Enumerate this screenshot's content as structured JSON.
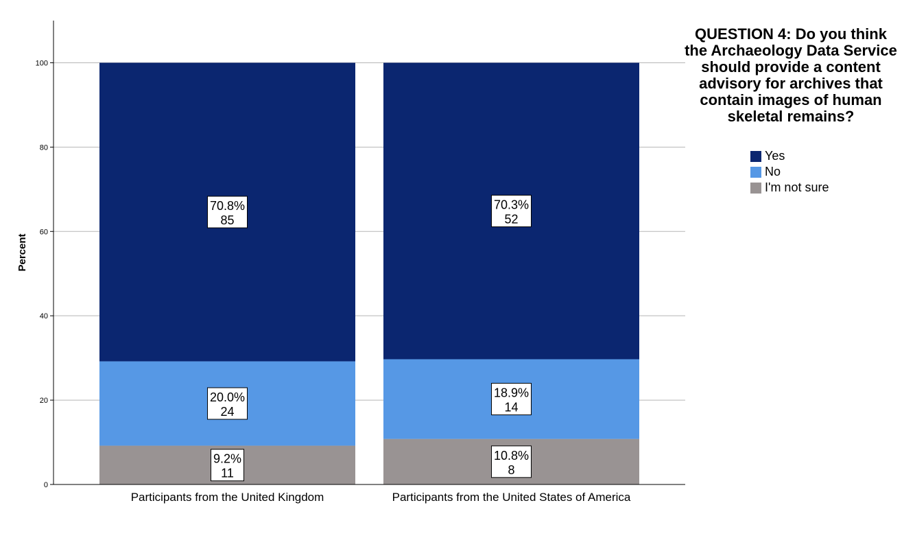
{
  "chart_data": {
    "type": "bar",
    "stacked": true,
    "ylabel": "Percent",
    "xlabel": "",
    "ylim": [
      0,
      110
    ],
    "yticks": [
      0,
      20,
      40,
      60,
      80,
      100
    ],
    "grid": true,
    "legend_placement": "right",
    "legend_title": "QUESTION 4: Do you think the Archaeology Data Service should provide a content advisory for archives that contain images of human skeletal remains?",
    "categories": [
      "Participants from the United Kingdom",
      "Participants from the United States of America"
    ],
    "series": [
      {
        "name": "I'm not sure",
        "color": "#999393",
        "values": [
          9.2,
          10.8
        ],
        "labels": [
          "9.2%",
          "10.8%"
        ],
        "counts": [
          "11",
          "8"
        ]
      },
      {
        "name": "No",
        "color": "#5698e5",
        "values": [
          20.0,
          18.9
        ],
        "labels": [
          "20.0%",
          "18.9%"
        ],
        "counts": [
          "24",
          "14"
        ]
      },
      {
        "name": "Yes",
        "color": "#0b2670",
        "values": [
          70.8,
          70.3
        ],
        "labels": [
          "70.8%",
          "70.3%"
        ],
        "counts": [
          "85",
          "52"
        ]
      }
    ],
    "legend_order": [
      "Yes",
      "No",
      "I'm not sure"
    ]
  }
}
